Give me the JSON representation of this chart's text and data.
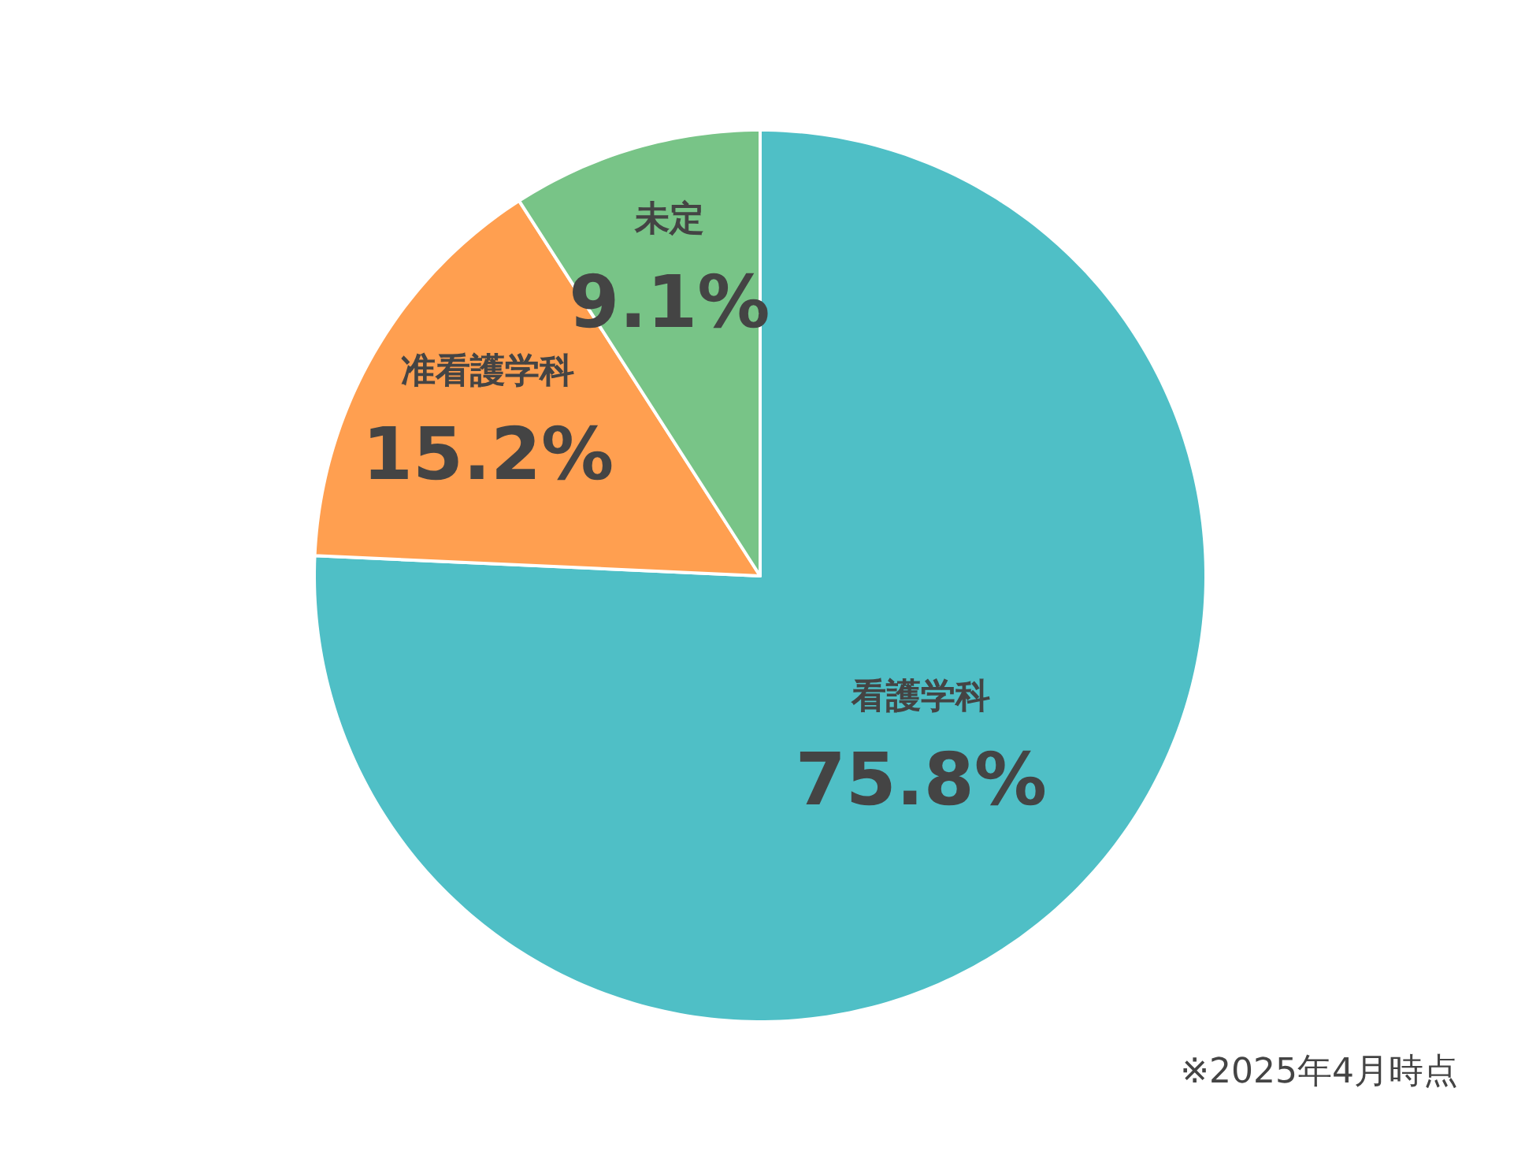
{
  "chart_data": {
    "type": "pie",
    "categories": [
      "看護学科",
      "准看護学科",
      "未定"
    ],
    "values": [
      75.8,
      15.2,
      9.1
    ],
    "colors": [
      "#4fbfc6",
      "#ff9f50",
      "#78c487"
    ],
    "value_labels": [
      "75.8%",
      "15.2%",
      "9.1%"
    ],
    "annotations": [
      "※2025年4月時点"
    ]
  }
}
